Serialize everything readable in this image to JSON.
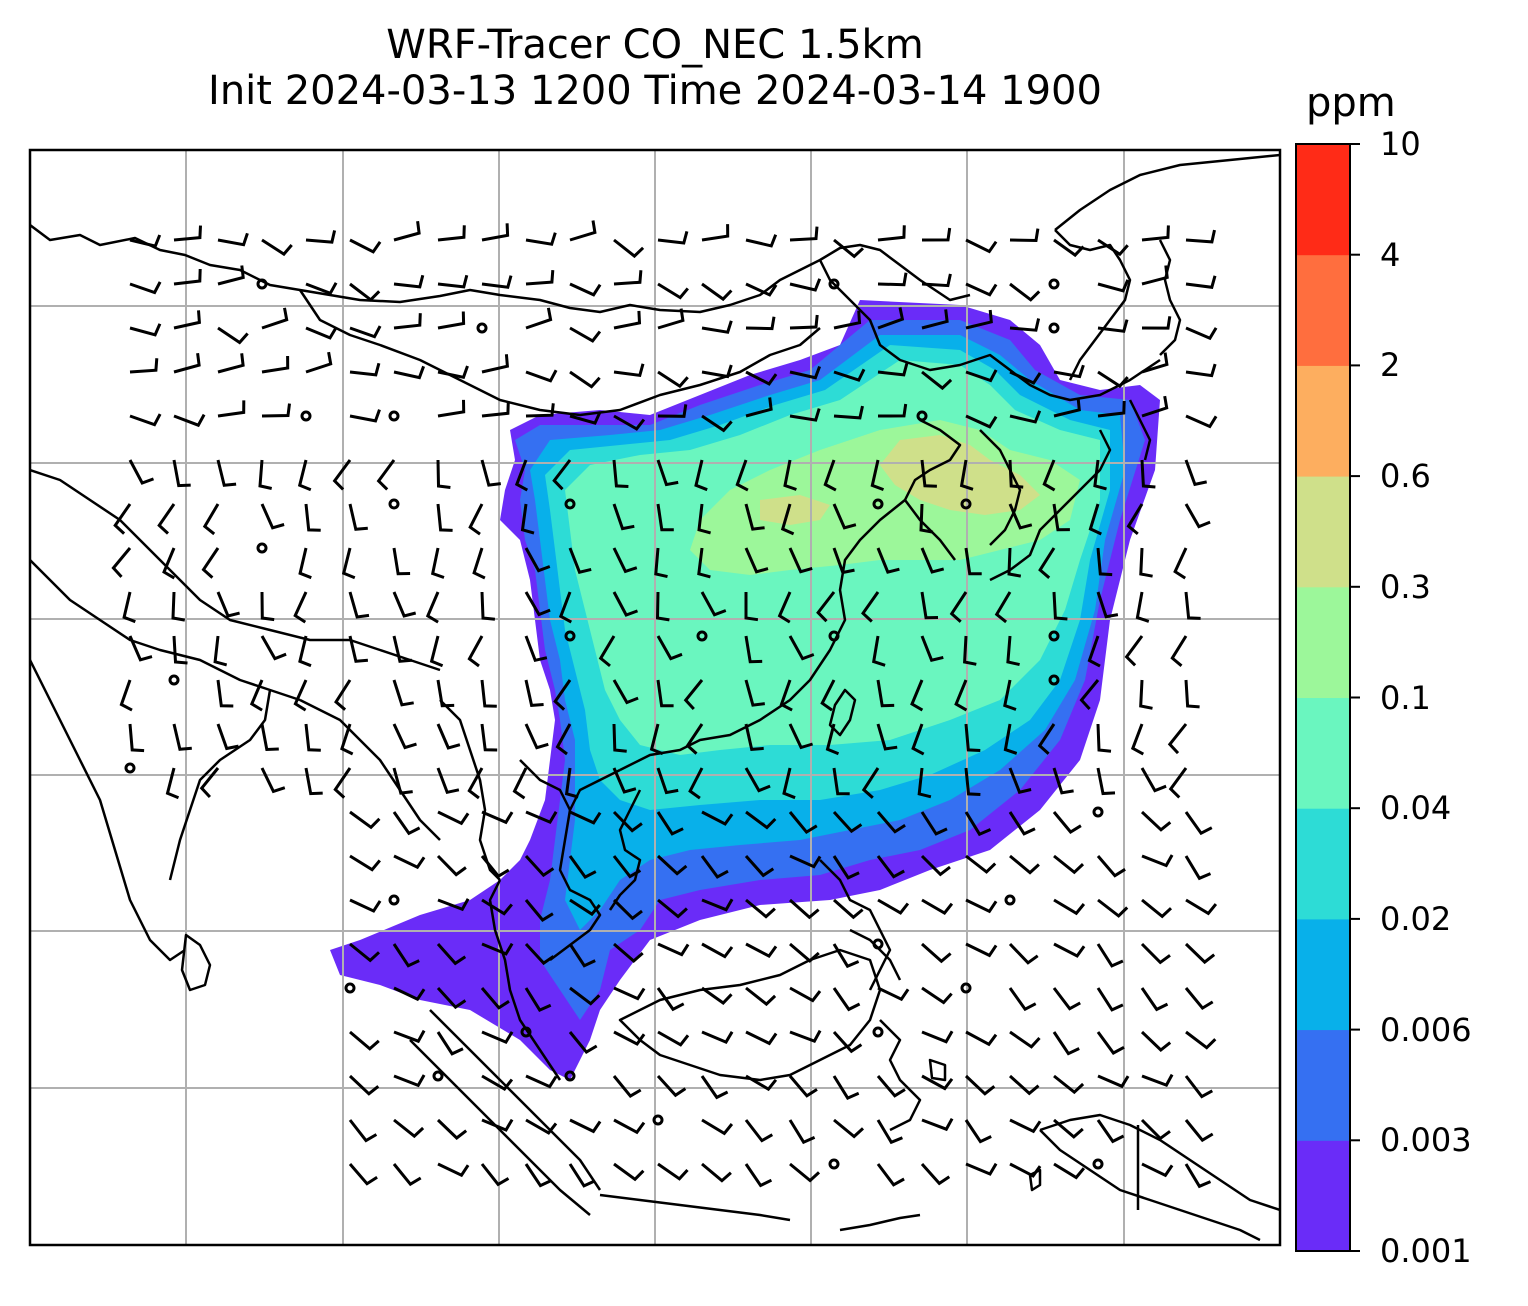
{
  "title": {
    "line1": "WRF-Tracer CO_NEC 1.5km",
    "line2": "Init 2024-03-13 1200 Time 2024-03-14 1900"
  },
  "colorbar": {
    "units": "ppm",
    "levels": [
      "0.001",
      "0.003",
      "0.006",
      "0.02",
      "0.04",
      "0.1",
      "0.3",
      "0.6",
      "2",
      "4",
      "10"
    ],
    "colors": [
      "#6a2cf8",
      "#3570f2",
      "#08b0ea",
      "#2ddcd6",
      "#6af6bf",
      "#9cf79a",
      "#cfe08a",
      "#fdae5f",
      "#ff6e3e",
      "#ff2b17"
    ]
  },
  "map": {
    "grid": true,
    "land_outline_color": "#000000",
    "grid_color": "#b0b0b0"
  }
}
